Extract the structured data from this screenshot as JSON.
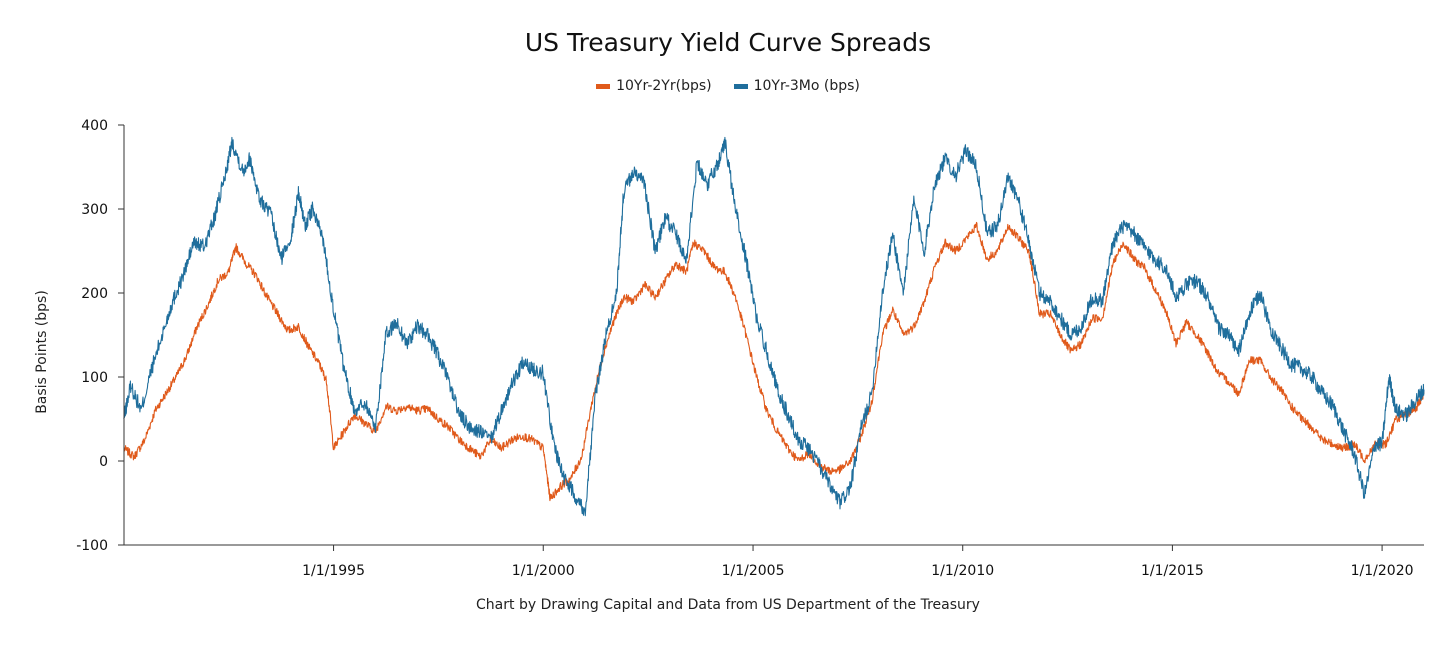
{
  "chart_data": {
    "type": "line",
    "title": "US Treasury Yield Curve Spreads",
    "xlabel": "",
    "ylabel": "Basis Points (bps)",
    "caption": "Chart by Drawing Capital and Data from US Department of the Treasury",
    "xlim": [
      "1990-01-02",
      "2020-12-31"
    ],
    "ylim": [
      -100,
      400
    ],
    "x_ticks": [
      "1/1/1995",
      "1/1/2000",
      "1/1/2005",
      "1/1/2010",
      "1/1/2015",
      "1/1/2020"
    ],
    "x_tick_dates": [
      "1995-01-01",
      "2000-01-01",
      "2005-01-01",
      "2010-01-01",
      "2015-01-01",
      "2020-01-01"
    ],
    "y_ticks": [
      -100,
      0,
      100,
      200,
      300,
      400
    ],
    "grid": false,
    "legend_position": "top-center",
    "series": [
      {
        "name": "10Yr-2Yr(bps)",
        "color": "#e05a1b",
        "points": [
          [
            "1990-01-01",
            15
          ],
          [
            "1990-04-01",
            5
          ],
          [
            "1990-07-01",
            25
          ],
          [
            "1990-10-01",
            60
          ],
          [
            "1991-01-01",
            80
          ],
          [
            "1991-04-01",
            100
          ],
          [
            "1991-07-01",
            125
          ],
          [
            "1991-10-01",
            160
          ],
          [
            "1992-01-01",
            185
          ],
          [
            "1992-04-01",
            215
          ],
          [
            "1992-07-01",
            225
          ],
          [
            "1992-09-01",
            255
          ],
          [
            "1992-12-01",
            235
          ],
          [
            "1993-03-01",
            220
          ],
          [
            "1993-06-01",
            195
          ],
          [
            "1993-09-01",
            175
          ],
          [
            "1993-12-01",
            155
          ],
          [
            "1994-03-01",
            160
          ],
          [
            "1994-06-01",
            135
          ],
          [
            "1994-09-01",
            115
          ],
          [
            "1994-11-01",
            95
          ],
          [
            "1995-01-01",
            15
          ],
          [
            "1995-04-01",
            35
          ],
          [
            "1995-07-01",
            55
          ],
          [
            "1995-10-01",
            45
          ],
          [
            "1996-01-01",
            35
          ],
          [
            "1996-04-01",
            65
          ],
          [
            "1996-07-01",
            60
          ],
          [
            "1996-10-01",
            65
          ],
          [
            "1997-01-01",
            60
          ],
          [
            "1997-04-01",
            62
          ],
          [
            "1997-07-01",
            50
          ],
          [
            "1997-10-01",
            40
          ],
          [
            "1998-01-01",
            25
          ],
          [
            "1998-04-01",
            15
          ],
          [
            "1998-07-01",
            5
          ],
          [
            "1998-10-01",
            25
          ],
          [
            "1999-01-01",
            15
          ],
          [
            "1999-04-01",
            25
          ],
          [
            "1999-07-01",
            30
          ],
          [
            "1999-10-01",
            25
          ],
          [
            "2000-01-01",
            15
          ],
          [
            "2000-03-01",
            -45
          ],
          [
            "2000-06-01",
            -30
          ],
          [
            "2000-09-01",
            -20
          ],
          [
            "2000-12-01",
            5
          ],
          [
            "2001-03-01",
            70
          ],
          [
            "2001-06-01",
            125
          ],
          [
            "2001-09-01",
            165
          ],
          [
            "2001-12-01",
            195
          ],
          [
            "2002-03-01",
            190
          ],
          [
            "2002-06-01",
            210
          ],
          [
            "2002-09-01",
            195
          ],
          [
            "2002-12-01",
            215
          ],
          [
            "2003-03-01",
            235
          ],
          [
            "2003-06-01",
            225
          ],
          [
            "2003-08-01",
            260
          ],
          [
            "2003-11-01",
            250
          ],
          [
            "2004-02-01",
            230
          ],
          [
            "2004-05-01",
            225
          ],
          [
            "2004-08-01",
            195
          ],
          [
            "2004-11-01",
            150
          ],
          [
            "2005-02-01",
            100
          ],
          [
            "2005-05-01",
            60
          ],
          [
            "2005-08-01",
            35
          ],
          [
            "2005-11-01",
            15
          ],
          [
            "2006-02-01",
            0
          ],
          [
            "2006-05-01",
            10
          ],
          [
            "2006-08-01",
            -5
          ],
          [
            "2006-11-01",
            -12
          ],
          [
            "2007-02-01",
            -10
          ],
          [
            "2007-05-01",
            0
          ],
          [
            "2007-08-01",
            30
          ],
          [
            "2007-11-01",
            70
          ],
          [
            "2008-02-01",
            150
          ],
          [
            "2008-05-01",
            180
          ],
          [
            "2008-08-01",
            150
          ],
          [
            "2008-11-01",
            160
          ],
          [
            "2009-02-01",
            190
          ],
          [
            "2009-05-01",
            230
          ],
          [
            "2009-08-01",
            260
          ],
          [
            "2009-11-01",
            250
          ],
          [
            "2010-02-01",
            265
          ],
          [
            "2010-05-01",
            280
          ],
          [
            "2010-08-01",
            240
          ],
          [
            "2010-11-01",
            250
          ],
          [
            "2011-02-01",
            280
          ],
          [
            "2011-05-01",
            265
          ],
          [
            "2011-08-01",
            250
          ],
          [
            "2011-11-01",
            175
          ],
          [
            "2012-02-01",
            175
          ],
          [
            "2012-05-01",
            150
          ],
          [
            "2012-08-01",
            130
          ],
          [
            "2012-11-01",
            140
          ],
          [
            "2013-02-01",
            170
          ],
          [
            "2013-05-01",
            170
          ],
          [
            "2013-08-01",
            235
          ],
          [
            "2013-11-01",
            260
          ],
          [
            "2014-02-01",
            240
          ],
          [
            "2014-05-01",
            230
          ],
          [
            "2014-08-01",
            205
          ],
          [
            "2014-11-01",
            180
          ],
          [
            "2015-02-01",
            140
          ],
          [
            "2015-05-01",
            165
          ],
          [
            "2015-08-01",
            150
          ],
          [
            "2015-11-01",
            130
          ],
          [
            "2016-02-01",
            105
          ],
          [
            "2016-05-01",
            95
          ],
          [
            "2016-08-01",
            80
          ],
          [
            "2016-11-01",
            120
          ],
          [
            "2017-02-01",
            120
          ],
          [
            "2017-05-01",
            100
          ],
          [
            "2017-08-01",
            85
          ],
          [
            "2017-11-01",
            65
          ],
          [
            "2018-02-01",
            50
          ],
          [
            "2018-05-01",
            40
          ],
          [
            "2018-08-01",
            25
          ],
          [
            "2018-11-01",
            20
          ],
          [
            "2019-02-01",
            15
          ],
          [
            "2019-05-01",
            20
          ],
          [
            "2019-08-01",
            2
          ],
          [
            "2019-11-01",
            20
          ],
          [
            "2020-02-01",
            20
          ],
          [
            "2020-05-01",
            50
          ],
          [
            "2020-08-01",
            55
          ],
          [
            "2020-11-01",
            65
          ],
          [
            "2020-12-31",
            80
          ]
        ]
      },
      {
        "name": "10Yr-3Mo (bps)",
        "color": "#1f6e9c",
        "points": [
          [
            "1990-01-01",
            50
          ],
          [
            "1990-03-01",
            90
          ],
          [
            "1990-06-01",
            60
          ],
          [
            "1990-09-01",
            110
          ],
          [
            "1990-12-01",
            150
          ],
          [
            "1991-03-01",
            190
          ],
          [
            "1991-06-01",
            220
          ],
          [
            "1991-09-01",
            260
          ],
          [
            "1991-12-01",
            255
          ],
          [
            "1992-03-01",
            290
          ],
          [
            "1992-06-01",
            340
          ],
          [
            "1992-08-01",
            380
          ],
          [
            "1992-11-01",
            345
          ],
          [
            "1993-01-01",
            360
          ],
          [
            "1993-04-01",
            310
          ],
          [
            "1993-07-01",
            295
          ],
          [
            "1993-10-01",
            240
          ],
          [
            "1994-01-01",
            270
          ],
          [
            "1994-03-01",
            320
          ],
          [
            "1994-05-01",
            280
          ],
          [
            "1994-07-01",
            300
          ],
          [
            "1994-10-01",
            265
          ],
          [
            "1995-01-01",
            180
          ],
          [
            "1995-04-01",
            110
          ],
          [
            "1995-07-01",
            60
          ],
          [
            "1995-10-01",
            70
          ],
          [
            "1996-01-01",
            40
          ],
          [
            "1996-04-01",
            150
          ],
          [
            "1996-07-01",
            165
          ],
          [
            "1996-10-01",
            140
          ],
          [
            "1997-01-01",
            160
          ],
          [
            "1997-04-01",
            150
          ],
          [
            "1997-07-01",
            125
          ],
          [
            "1997-10-01",
            95
          ],
          [
            "1998-01-01",
            55
          ],
          [
            "1998-04-01",
            40
          ],
          [
            "1998-07-01",
            35
          ],
          [
            "1998-10-01",
            25
          ],
          [
            "1999-01-01",
            60
          ],
          [
            "1999-04-01",
            90
          ],
          [
            "1999-07-01",
            115
          ],
          [
            "1999-10-01",
            110
          ],
          [
            "2000-01-01",
            105
          ],
          [
            "2000-04-01",
            20
          ],
          [
            "2000-07-01",
            -20
          ],
          [
            "2000-10-01",
            -40
          ],
          [
            "2001-01-01",
            -60
          ],
          [
            "2001-04-01",
            80
          ],
          [
            "2001-07-01",
            150
          ],
          [
            "2001-10-01",
            200
          ],
          [
            "2001-12-01",
            320
          ],
          [
            "2002-03-01",
            345
          ],
          [
            "2002-06-01",
            330
          ],
          [
            "2002-09-01",
            250
          ],
          [
            "2002-12-01",
            290
          ],
          [
            "2003-03-01",
            270
          ],
          [
            "2003-06-01",
            240
          ],
          [
            "2003-09-01",
            355
          ],
          [
            "2003-12-01",
            330
          ],
          [
            "2004-03-01",
            355
          ],
          [
            "2004-05-01",
            380
          ],
          [
            "2004-08-01",
            300
          ],
          [
            "2004-11-01",
            240
          ],
          [
            "2005-02-01",
            170
          ],
          [
            "2005-05-01",
            130
          ],
          [
            "2005-08-01",
            85
          ],
          [
            "2005-11-01",
            55
          ],
          [
            "2006-02-01",
            25
          ],
          [
            "2006-05-01",
            15
          ],
          [
            "2006-08-01",
            -5
          ],
          [
            "2006-11-01",
            -30
          ],
          [
            "2007-02-01",
            -50
          ],
          [
            "2007-05-01",
            -30
          ],
          [
            "2007-08-01",
            40
          ],
          [
            "2007-11-01",
            80
          ],
          [
            "2008-02-01",
            200
          ],
          [
            "2008-05-01",
            270
          ],
          [
            "2008-08-01",
            200
          ],
          [
            "2008-11-01",
            310
          ],
          [
            "2009-02-01",
            250
          ],
          [
            "2009-05-01",
            330
          ],
          [
            "2009-08-01",
            360
          ],
          [
            "2009-11-01",
            340
          ],
          [
            "2010-02-01",
            370
          ],
          [
            "2010-05-01",
            350
          ],
          [
            "2010-08-01",
            270
          ],
          [
            "2010-11-01",
            280
          ],
          [
            "2011-02-01",
            340
          ],
          [
            "2011-05-01",
            310
          ],
          [
            "2011-08-01",
            260
          ],
          [
            "2011-11-01",
            200
          ],
          [
            "2012-02-01",
            190
          ],
          [
            "2012-05-01",
            170
          ],
          [
            "2012-08-01",
            150
          ],
          [
            "2012-11-01",
            160
          ],
          [
            "2013-02-01",
            195
          ],
          [
            "2013-05-01",
            190
          ],
          [
            "2013-08-01",
            260
          ],
          [
            "2013-11-01",
            280
          ],
          [
            "2014-02-01",
            270
          ],
          [
            "2014-05-01",
            255
          ],
          [
            "2014-08-01",
            240
          ],
          [
            "2014-11-01",
            230
          ],
          [
            "2015-02-01",
            195
          ],
          [
            "2015-05-01",
            210
          ],
          [
            "2015-08-01",
            215
          ],
          [
            "2015-11-01",
            195
          ],
          [
            "2016-02-01",
            160
          ],
          [
            "2016-05-01",
            150
          ],
          [
            "2016-08-01",
            130
          ],
          [
            "2016-11-01",
            175
          ],
          [
            "2017-02-01",
            200
          ],
          [
            "2017-05-01",
            160
          ],
          [
            "2017-08-01",
            135
          ],
          [
            "2017-11-01",
            115
          ],
          [
            "2018-02-01",
            110
          ],
          [
            "2018-05-01",
            100
          ],
          [
            "2018-08-01",
            80
          ],
          [
            "2018-11-01",
            65
          ],
          [
            "2019-02-01",
            35
          ],
          [
            "2019-05-01",
            10
          ],
          [
            "2019-08-01",
            -40
          ],
          [
            "2019-11-01",
            20
          ],
          [
            "2020-01-01",
            20
          ],
          [
            "2020-03-01",
            100
          ],
          [
            "2020-05-01",
            60
          ],
          [
            "2020-08-01",
            55
          ],
          [
            "2020-11-01",
            75
          ],
          [
            "2020-12-31",
            85
          ]
        ]
      }
    ]
  }
}
